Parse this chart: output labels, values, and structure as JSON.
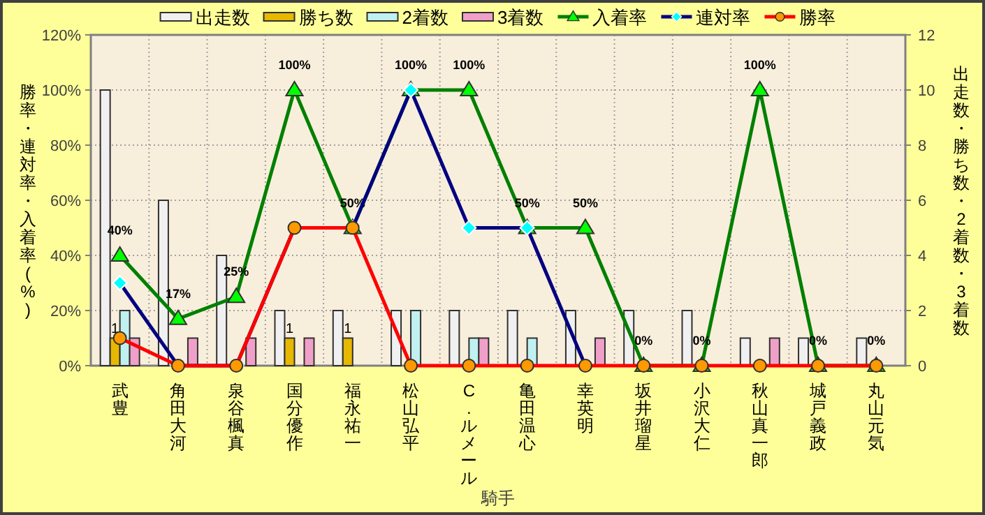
{
  "chart_data": {
    "type": "bar",
    "xlabel": "騎手",
    "ylabel": "勝率・連対率・入着率(%)",
    "y2label": "出走数・勝ち数・2着数・3着数",
    "categories": [
      "武豊",
      "角田大河",
      "泉谷楓真",
      "国分優作",
      "福永祐一",
      "松山弘平",
      "C.ルメール",
      "亀田温心",
      "幸英明",
      "坂井瑠星",
      "小沢大仁",
      "秋山真一郎",
      "城戸義政",
      "丸山元気"
    ],
    "series": [
      {
        "name": "出走数",
        "type": "bar",
        "axis": "y2",
        "color": "#f0f0f0",
        "values": [
          10,
          6,
          4,
          2,
          2,
          2,
          2,
          2,
          2,
          2,
          2,
          1,
          1,
          1
        ]
      },
      {
        "name": "勝ち数",
        "type": "bar",
        "axis": "y2",
        "color": "#e6b800",
        "values": [
          1,
          0,
          0,
          1,
          1,
          0,
          0,
          0,
          0,
          0,
          0,
          0,
          0,
          0
        ],
        "value_labels": [
          "1",
          null,
          null,
          "1",
          "1",
          null,
          null,
          null,
          null,
          null,
          null,
          null,
          null,
          null
        ]
      },
      {
        "name": "2着数",
        "type": "bar",
        "axis": "y2",
        "color": "#c0f0f0",
        "values": [
          2,
          0,
          0,
          0,
          0,
          2,
          1,
          1,
          0,
          0,
          0,
          0,
          0,
          0
        ]
      },
      {
        "name": "3着数",
        "type": "bar",
        "axis": "y2",
        "color": "#f0a0c8",
        "values": [
          1,
          1,
          1,
          1,
          0,
          0,
          1,
          0,
          1,
          0,
          0,
          1,
          0,
          0
        ]
      },
      {
        "name": "入着率",
        "type": "line",
        "marker": "triangle",
        "color": "#008000",
        "values": [
          40,
          17,
          25,
          100,
          50,
          100,
          100,
          50,
          50,
          0,
          0,
          100,
          0,
          0
        ],
        "value_labels": [
          "40%",
          "17%",
          "25%",
          "100%",
          "50%",
          "100%",
          "100%",
          "50%",
          "50%",
          "0%",
          "0%",
          "100%",
          "0%",
          "0%"
        ]
      },
      {
        "name": "連対率",
        "type": "line",
        "marker": "diamond",
        "color": "#000080",
        "values": [
          30,
          0,
          0,
          50,
          50,
          100,
          50,
          50,
          0,
          null,
          null,
          null,
          null,
          null
        ]
      },
      {
        "name": "勝率",
        "type": "line",
        "marker": "circle",
        "color": "#ff0000",
        "values": [
          10,
          0,
          0,
          50,
          50,
          0,
          0,
          0,
          0,
          0,
          0,
          0,
          0,
          0
        ]
      }
    ],
    "ylim": [
      0,
      120
    ],
    "yticks": [
      {
        "value": 0,
        "label": "0%"
      },
      {
        "value": 20,
        "label": "20%"
      },
      {
        "value": 40,
        "label": "40%"
      },
      {
        "value": 60,
        "label": "60%"
      },
      {
        "value": 80,
        "label": "80%"
      },
      {
        "value": 100,
        "label": "100%"
      },
      {
        "value": 120,
        "label": "120%"
      }
    ],
    "y2lim": [
      0,
      12
    ],
    "y2ticks": [
      0,
      2,
      4,
      6,
      8,
      10,
      12
    ],
    "grid": true,
    "legend": "top"
  }
}
